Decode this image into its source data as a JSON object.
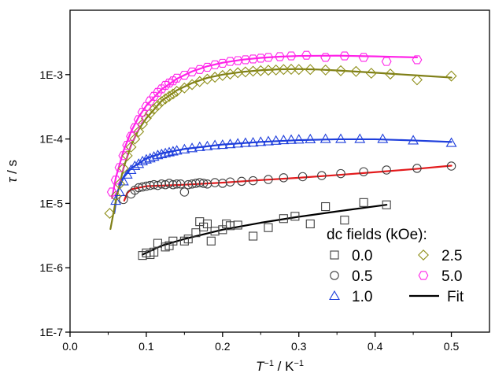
{
  "chart_data": {
    "type": "scatter",
    "x_axis": {
      "label_parts": [
        "T",
        "−1",
        " / K",
        "−1"
      ],
      "range": [
        0.0,
        0.55
      ],
      "ticks": [
        0.0,
        0.1,
        0.2,
        0.3,
        0.4,
        0.5
      ],
      "tick_labels": [
        "0.0",
        "0.1",
        "0.2",
        "0.3",
        "0.4",
        "0.5"
      ]
    },
    "y_axis": {
      "label_parts": [
        "τ",
        " / s"
      ],
      "scale": "log",
      "range": [
        1e-07,
        0.01
      ],
      "ticks": [
        1e-07,
        1e-06,
        1e-05,
        0.0001,
        0.001
      ],
      "tick_labels": [
        "1E-7",
        "1E-6",
        "1E-5",
        "1E-4",
        "1E-3"
      ]
    },
    "grid": false,
    "legend": {
      "title": "dc fields (kOe):",
      "placement": "bottom-right",
      "fit_label": "Fit",
      "fit_color": "#000000"
    },
    "series": [
      {
        "name": "0.0",
        "marker": "square",
        "color": "#404040",
        "fit_color": "#000000",
        "points": [
          [
            0.095,
            1.55e-06
          ],
          [
            0.1,
            1.7e-06
          ],
          [
            0.105,
            1.6e-06
          ],
          [
            0.11,
            1.75e-06
          ],
          [
            0.115,
            2.4e-06
          ],
          [
            0.125,
            2.1e-06
          ],
          [
            0.13,
            2.2e-06
          ],
          [
            0.135,
            2.6e-06
          ],
          [
            0.15,
            2.6e-06
          ],
          [
            0.155,
            2.8e-06
          ],
          [
            0.165,
            3.5e-06
          ],
          [
            0.17,
            5.2e-06
          ],
          [
            0.175,
            4.3e-06
          ],
          [
            0.18,
            4.8e-06
          ],
          [
            0.185,
            2.6e-06
          ],
          [
            0.19,
            3.7e-06
          ],
          [
            0.2,
            3.9e-06
          ],
          [
            0.205,
            4.8e-06
          ],
          [
            0.21,
            4.5e-06
          ],
          [
            0.22,
            4.6e-06
          ],
          [
            0.24,
            3.1e-06
          ],
          [
            0.26,
            4.2e-06
          ],
          [
            0.28,
            5.8e-06
          ],
          [
            0.295,
            6.3e-06
          ],
          [
            0.315,
            4.8e-06
          ],
          [
            0.335,
            8.9e-06
          ],
          [
            0.36,
            5.5e-06
          ],
          [
            0.385,
            1.03e-05
          ],
          [
            0.415,
            9.5e-06
          ]
        ],
        "fit": [
          [
            0.095,
            1.6e-06
          ],
          [
            0.12,
            2.2e-06
          ],
          [
            0.15,
            2.8e-06
          ],
          [
            0.2,
            3.9e-06
          ],
          [
            0.25,
            5e-06
          ],
          [
            0.3,
            6.2e-06
          ],
          [
            0.35,
            7.5e-06
          ],
          [
            0.415,
            9.5e-06
          ]
        ]
      },
      {
        "name": "0.5",
        "marker": "circle",
        "color": "#404040",
        "fit_color": "#e31a1c",
        "points": [
          [
            0.07,
            1.15e-05
          ],
          [
            0.08,
            1.4e-05
          ],
          [
            0.085,
            1.6e-05
          ],
          [
            0.09,
            1.75e-05
          ],
          [
            0.095,
            1.8e-05
          ],
          [
            0.1,
            1.85e-05
          ],
          [
            0.105,
            1.9e-05
          ],
          [
            0.11,
            1.95e-05
          ],
          [
            0.115,
            1.9e-05
          ],
          [
            0.12,
            2e-05
          ],
          [
            0.125,
            1.95e-05
          ],
          [
            0.13,
            2.05e-05
          ],
          [
            0.135,
            1.95e-05
          ],
          [
            0.14,
            2e-05
          ],
          [
            0.145,
            2e-05
          ],
          [
            0.15,
            1.5e-05
          ],
          [
            0.155,
            1.95e-05
          ],
          [
            0.16,
            2e-05
          ],
          [
            0.165,
            2.05e-05
          ],
          [
            0.17,
            2.1e-05
          ],
          [
            0.175,
            2.05e-05
          ],
          [
            0.18,
            2e-05
          ],
          [
            0.19,
            2.1e-05
          ],
          [
            0.2,
            2.05e-05
          ],
          [
            0.21,
            2.15e-05
          ],
          [
            0.225,
            2.2e-05
          ],
          [
            0.24,
            2.25e-05
          ],
          [
            0.26,
            2.35e-05
          ],
          [
            0.28,
            2.5e-05
          ],
          [
            0.305,
            2.6e-05
          ],
          [
            0.33,
            2.7e-05
          ],
          [
            0.355,
            2.9e-05
          ],
          [
            0.385,
            3.1e-05
          ],
          [
            0.415,
            3.3e-05
          ],
          [
            0.455,
            3.5e-05
          ],
          [
            0.5,
            3.8e-05
          ]
        ],
        "fit": [
          [
            0.071,
            1.1e-05
          ],
          [
            0.075,
            1.45e-05
          ],
          [
            0.08,
            1.65e-05
          ],
          [
            0.1,
            1.85e-05
          ],
          [
            0.15,
            1.95e-05
          ],
          [
            0.2,
            2.1e-05
          ],
          [
            0.25,
            2.3e-05
          ],
          [
            0.3,
            2.5e-05
          ],
          [
            0.35,
            2.75e-05
          ],
          [
            0.4,
            3.05e-05
          ],
          [
            0.45,
            3.4e-05
          ],
          [
            0.5,
            3.85e-05
          ]
        ]
      },
      {
        "name": "1.0",
        "marker": "triangle",
        "color": "#1f3fdc",
        "fit_color": "#1f3fdc",
        "points": [
          [
            0.06,
            1.1e-05
          ],
          [
            0.065,
            1.5e-05
          ],
          [
            0.07,
            2.2e-05
          ],
          [
            0.075,
            2.8e-05
          ],
          [
            0.08,
            3.3e-05
          ],
          [
            0.085,
            3.8e-05
          ],
          [
            0.09,
            4.1e-05
          ],
          [
            0.095,
            4.5e-05
          ],
          [
            0.1,
            4.8e-05
          ],
          [
            0.105,
            5e-05
          ],
          [
            0.11,
            5.3e-05
          ],
          [
            0.115,
            5.6e-05
          ],
          [
            0.12,
            5.8e-05
          ],
          [
            0.125,
            6e-05
          ],
          [
            0.13,
            6.2e-05
          ],
          [
            0.135,
            6.4e-05
          ],
          [
            0.14,
            6.6e-05
          ],
          [
            0.15,
            6.9e-05
          ],
          [
            0.16,
            7.2e-05
          ],
          [
            0.17,
            7.5e-05
          ],
          [
            0.18,
            7.7e-05
          ],
          [
            0.19,
            8e-05
          ],
          [
            0.2,
            8.1e-05
          ],
          [
            0.21,
            8.3e-05
          ],
          [
            0.22,
            8.5e-05
          ],
          [
            0.23,
            8.7e-05
          ],
          [
            0.24,
            8.8e-05
          ],
          [
            0.25,
            9e-05
          ],
          [
            0.26,
            9.2e-05
          ],
          [
            0.27,
            9.4e-05
          ],
          [
            0.28,
            9.6e-05
          ],
          [
            0.29,
            9.7e-05
          ],
          [
            0.3,
            9.8e-05
          ],
          [
            0.315,
            9.9e-05
          ],
          [
            0.335,
            0.0001
          ],
          [
            0.355,
            0.0001
          ],
          [
            0.38,
            0.0001
          ],
          [
            0.41,
            0.0001
          ],
          [
            0.45,
            9.5e-05
          ],
          [
            0.5,
            8.7e-05
          ]
        ],
        "fit": [
          [
            0.058,
            7e-06
          ],
          [
            0.062,
            1.5e-05
          ],
          [
            0.07,
            2.5e-05
          ],
          [
            0.08,
            3.5e-05
          ],
          [
            0.1,
            5e-05
          ],
          [
            0.12,
            6e-05
          ],
          [
            0.15,
            7e-05
          ],
          [
            0.2,
            8.2e-05
          ],
          [
            0.25,
            9e-05
          ],
          [
            0.3,
            9.6e-05
          ],
          [
            0.35,
            9.9e-05
          ],
          [
            0.4,
            9.9e-05
          ],
          [
            0.45,
            9.5e-05
          ],
          [
            0.5,
            9e-05
          ]
        ]
      },
      {
        "name": "2.5",
        "marker": "diamond",
        "color": "#8f8f1a",
        "fit_color": "#7f7f17",
        "points": [
          [
            0.052,
            7e-06
          ],
          [
            0.06,
            1.3e-05
          ],
          [
            0.065,
            2e-05
          ],
          [
            0.07,
            3.5e-05
          ],
          [
            0.075,
            5.5e-05
          ],
          [
            0.08,
            7.5e-05
          ],
          [
            0.085,
            0.0001
          ],
          [
            0.09,
            0.00013
          ],
          [
            0.095,
            0.00017
          ],
          [
            0.1,
            0.00021
          ],
          [
            0.105,
            0.00025
          ],
          [
            0.11,
            0.00029
          ],
          [
            0.115,
            0.00033
          ],
          [
            0.12,
            0.00038
          ],
          [
            0.125,
            0.00042
          ],
          [
            0.13,
            0.00046
          ],
          [
            0.135,
            0.0005
          ],
          [
            0.14,
            0.00055
          ],
          [
            0.15,
            0.00062
          ],
          [
            0.16,
            0.0007
          ],
          [
            0.17,
            0.00078
          ],
          [
            0.18,
            0.00085
          ],
          [
            0.19,
            0.00091
          ],
          [
            0.2,
            0.00097
          ],
          [
            0.21,
            0.00102
          ],
          [
            0.22,
            0.00107
          ],
          [
            0.23,
            0.0011
          ],
          [
            0.24,
            0.00113
          ],
          [
            0.25,
            0.00115
          ],
          [
            0.26,
            0.00117
          ],
          [
            0.27,
            0.00118
          ],
          [
            0.28,
            0.0012
          ],
          [
            0.29,
            0.00121
          ],
          [
            0.3,
            0.0012
          ],
          [
            0.315,
            0.0012
          ],
          [
            0.335,
            0.00118
          ],
          [
            0.355,
            0.00115
          ],
          [
            0.375,
            0.00112
          ],
          [
            0.395,
            0.00105
          ],
          [
            0.42,
            0.00102
          ],
          [
            0.455,
            0.00083
          ],
          [
            0.5,
            0.00095
          ]
        ],
        "fit": [
          [
            0.053,
            4e-06
          ],
          [
            0.06,
            1.1e-05
          ],
          [
            0.07,
            3.5e-05
          ],
          [
            0.08,
            8e-05
          ],
          [
            0.09,
            0.00014
          ],
          [
            0.1,
            0.00021
          ],
          [
            0.12,
            0.00039
          ],
          [
            0.14,
            0.00057
          ],
          [
            0.16,
            0.00074
          ],
          [
            0.18,
            0.00089
          ],
          [
            0.2,
            0.001
          ],
          [
            0.225,
            0.0011
          ],
          [
            0.25,
            0.00117
          ],
          [
            0.275,
            0.00121
          ],
          [
            0.3,
            0.00122
          ],
          [
            0.325,
            0.0012
          ],
          [
            0.35,
            0.00116
          ],
          [
            0.4,
            0.00107
          ],
          [
            0.45,
            0.00098
          ],
          [
            0.5,
            0.0009
          ]
        ]
      },
      {
        "name": "5.0",
        "marker": "hexagon",
        "color": "#ff22e8",
        "fit_color": "#ff22e8",
        "points": [
          [
            0.055,
            1.5e-05
          ],
          [
            0.06,
            2.3e-05
          ],
          [
            0.065,
            3.6e-05
          ],
          [
            0.07,
            5.5e-05
          ],
          [
            0.075,
            8e-05
          ],
          [
            0.08,
            0.00011
          ],
          [
            0.085,
            0.00015
          ],
          [
            0.09,
            0.0002
          ],
          [
            0.095,
            0.00026
          ],
          [
            0.1,
            0.00032
          ],
          [
            0.105,
            0.00039
          ],
          [
            0.11,
            0.00046
          ],
          [
            0.115,
            0.00053
          ],
          [
            0.12,
            0.0006
          ],
          [
            0.125,
            0.00068
          ],
          [
            0.13,
            0.00074
          ],
          [
            0.135,
            0.0008
          ],
          [
            0.14,
            0.00088
          ],
          [
            0.15,
            0.00098
          ],
          [
            0.16,
            0.0011
          ],
          [
            0.17,
            0.0012
          ],
          [
            0.18,
            0.0013
          ],
          [
            0.19,
            0.00142
          ],
          [
            0.2,
            0.0015
          ],
          [
            0.21,
            0.0016
          ],
          [
            0.22,
            0.00165
          ],
          [
            0.23,
            0.0017
          ],
          [
            0.24,
            0.00175
          ],
          [
            0.25,
            0.0018
          ],
          [
            0.26,
            0.00185
          ],
          [
            0.275,
            0.0019
          ],
          [
            0.29,
            0.00195
          ],
          [
            0.31,
            0.002
          ],
          [
            0.335,
            0.00185
          ],
          [
            0.36,
            0.00195
          ],
          [
            0.385,
            0.00185
          ],
          [
            0.415,
            0.0016
          ],
          [
            0.455,
            0.0017
          ]
        ],
        "fit": [
          [
            0.055,
            1.2e-05
          ],
          [
            0.06,
            2.5e-05
          ],
          [
            0.07,
            6.5e-05
          ],
          [
            0.08,
            0.00013
          ],
          [
            0.09,
            0.00022
          ],
          [
            0.1,
            0.00033
          ],
          [
            0.12,
            0.00059
          ],
          [
            0.14,
            0.00086
          ],
          [
            0.16,
            0.00112
          ],
          [
            0.18,
            0.00135
          ],
          [
            0.2,
            0.00153
          ],
          [
            0.225,
            0.0017
          ],
          [
            0.25,
            0.00182
          ],
          [
            0.275,
            0.0019
          ],
          [
            0.3,
            0.00195
          ],
          [
            0.35,
            0.00197
          ],
          [
            0.4,
            0.00192
          ],
          [
            0.455,
            0.00185
          ]
        ]
      }
    ]
  }
}
